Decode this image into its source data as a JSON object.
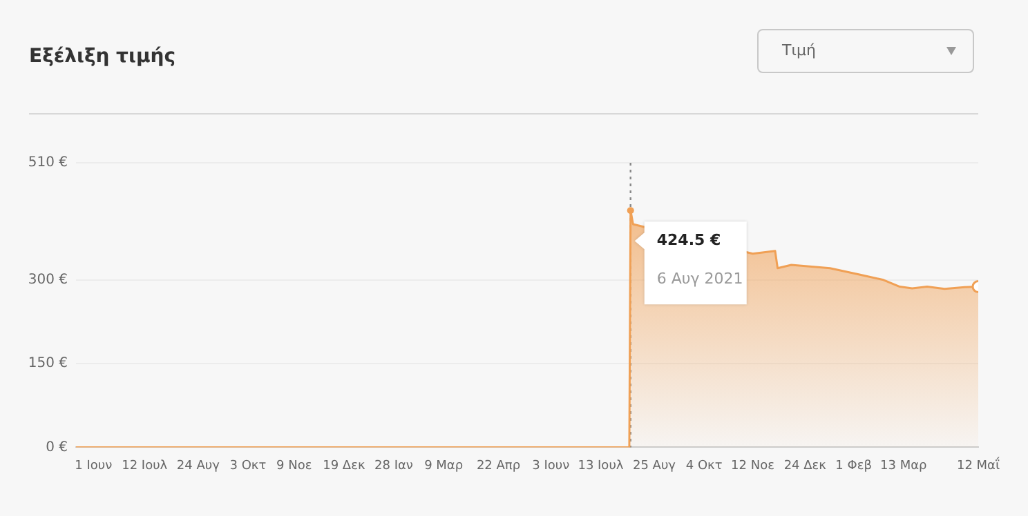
{
  "chart_data": {
    "type": "area",
    "title": "Εξέλιξη τιμής",
    "annotations": [
      {
        "text": "424.5 €",
        "x": "2021-08-06",
        "y": 424.5
      },
      "6 Αυγ 2021",
      "Τιμή"
    ],
    "x": [
      "2020-05-18",
      "2021-08-05",
      "2021-08-06",
      "2021-08-08",
      "2021-11-12",
      "2021-11-30",
      "2021-12-02",
      "2021-12-13",
      "2022-01-13",
      "2022-02-05",
      "2022-02-25",
      "2022-03-10",
      "2022-03-20",
      "2022-04-01",
      "2022-04-15",
      "2022-05-01",
      "2022-05-12"
    ],
    "series": [
      {
        "color": "#f0a055",
        "values": [
          0,
          0,
          424.5,
          400,
          347,
          352,
          321,
          327,
          321,
          310,
          300,
          288,
          285,
          288,
          284,
          287,
          288
        ]
      }
    ],
    "xlim": [
      "2020-05-18",
      "2022-05-12"
    ],
    "xticks": [
      {
        "value": "2020-06-01",
        "label": "1 Ιουν"
      },
      {
        "value": "2020-07-12",
        "label": "12 Ιουλ"
      },
      {
        "value": "2020-08-24",
        "label": "24 Αυγ"
      },
      {
        "value": "2020-10-03",
        "label": "3 Οκτ"
      },
      {
        "value": "2020-11-09",
        "label": "9 Νοε"
      },
      {
        "value": "2020-12-19",
        "label": "19 Δεκ"
      },
      {
        "value": "2021-01-28",
        "label": "28 Ιαν"
      },
      {
        "value": "2021-03-09",
        "label": "9 Μαρ"
      },
      {
        "value": "2021-04-22",
        "label": "22 Απρ"
      },
      {
        "value": "2021-06-03",
        "label": "3 Ιουν"
      },
      {
        "value": "2021-07-13",
        "label": "13 Ιουλ"
      },
      {
        "value": "2021-08-25",
        "label": "25 Αυγ"
      },
      {
        "value": "2021-10-04",
        "label": "4 Οκτ"
      },
      {
        "value": "2021-11-12",
        "label": "12 Νοε"
      },
      {
        "value": "2021-12-24",
        "label": "24 Δεκ"
      },
      {
        "value": "2022-02-01",
        "label": "1 Φεβ"
      },
      {
        "value": "2022-03-13",
        "label": "13 Μαρ"
      },
      {
        "value": "2022-05-12",
        "label": "12 Μαΐ"
      }
    ],
    "ylim": [
      0,
      510
    ],
    "yticks": [
      {
        "value": 0,
        "label": "0 €"
      },
      {
        "value": 150,
        "label": "150 €"
      },
      {
        "value": 300,
        "label": "300 €"
      },
      {
        "value": 510,
        "label": "510 €"
      }
    ],
    "ref_lines": [
      {
        "axis": "x",
        "value": "2021-08-06",
        "line_style": "dotted",
        "color": "#888888"
      }
    ],
    "grid": "y",
    "legend": false,
    "marker": "none",
    "line_style": "solid"
  }
}
